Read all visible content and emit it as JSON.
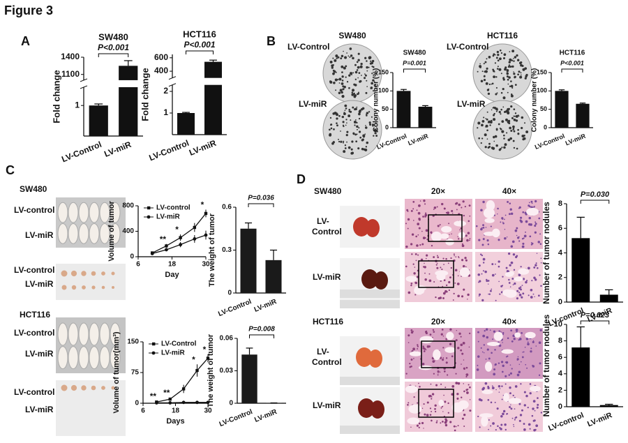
{
  "figure_title": "Figure 3",
  "panel_labels": [
    "A",
    "B",
    "C",
    "D"
  ],
  "photo_labels": {
    "B": [
      "SW480",
      "HCT116",
      "LV-Control",
      "LV-miR",
      "LV-Control",
      "LV-miR"
    ],
    "C": [
      "SW480",
      "LV-control",
      "LV-miR",
      "LV-control",
      "LV-miR",
      "HCT116",
      "LV-control",
      "LV-miR",
      "LV-control",
      "LV-miR"
    ],
    "D": [
      "SW480",
      "LV-",
      "Control",
      "LV-miR",
      "20×",
      "40×",
      "HCT116",
      "LV-",
      "Control",
      "LV-miR",
      "20×",
      "40×"
    ]
  },
  "chart_data": [
    {
      "type": "bar",
      "title": "SW480",
      "ylabel": "Fold change",
      "categories": [
        "LV-Control",
        "LV-miR"
      ],
      "values": [
        1,
        1250
      ],
      "errors": [
        0.05,
        90
      ],
      "ylim": [
        0,
        1400
      ],
      "ybreak": [
        1.6,
        1000
      ],
      "yticks": [
        1,
        1100,
        1400
      ],
      "annotation": "P<0.001",
      "color": "#111111"
    },
    {
      "type": "bar",
      "title": "HCT116",
      "ylabel": "Fold change",
      "categories": [
        "LV-Control",
        "LV-miR"
      ],
      "values": [
        1,
        540
      ],
      "errors": [
        0.03,
        25
      ],
      "ylim": [
        0,
        650
      ],
      "ybreak": [
        2.3,
        300
      ],
      "yticks": [
        1,
        2,
        400,
        600
      ],
      "annotation": "P<0.001",
      "color": "#111111"
    },
    {
      "type": "bar",
      "title": "SW480",
      "ylabel": "Colony number (%)",
      "categories": [
        "LV-Control",
        "LV-miR"
      ],
      "values": [
        100,
        57
      ],
      "errors": [
        4,
        3
      ],
      "ylim": [
        0,
        150
      ],
      "yticks": [
        0,
        50,
        100,
        150
      ],
      "annotation": "P=0.001",
      "color": "#111111"
    },
    {
      "type": "bar",
      "title": "HCT116",
      "ylabel": "Colony number (%)",
      "categories": [
        "LV-Control",
        "LV-miR"
      ],
      "values": [
        100,
        65
      ],
      "errors": [
        3,
        2
      ],
      "ylim": [
        0,
        150
      ],
      "yticks": [
        0,
        50,
        100,
        150
      ],
      "annotation": "P<0.001",
      "color": "#111111"
    },
    {
      "type": "line",
      "xlabel": "Day",
      "ylabel": "Volume of tumor",
      "x": [
        11,
        16,
        21,
        26,
        30
      ],
      "xlim": [
        6,
        30
      ],
      "xticks": [
        6,
        18,
        30
      ],
      "ylim": [
        0,
        800
      ],
      "yticks": [
        0,
        400,
        800
      ],
      "series": [
        {
          "name": "LV-control",
          "color": "#111111",
          "values": [
            60,
            170,
            300,
            460,
            680
          ],
          "errors": [
            15,
            30,
            50,
            70,
            60
          ]
        },
        {
          "name": "LV-miR",
          "color": "#111111",
          "values": [
            50,
            110,
            190,
            280,
            340
          ],
          "errors": [
            10,
            20,
            40,
            60,
            70
          ]
        }
      ],
      "annotations": [
        {
          "x": 16,
          "text": "**"
        },
        {
          "x": 21,
          "text": "*"
        },
        {
          "x": 30,
          "text": "*"
        }
      ]
    },
    {
      "type": "bar",
      "ylabel": "The weight of tumor",
      "categories": [
        "LV-Control",
        "LV-miR"
      ],
      "values": [
        0.45,
        0.23
      ],
      "errors": [
        0.04,
        0.07
      ],
      "ylim": [
        0,
        0.6
      ],
      "yticks": [
        0,
        0.3,
        0.6
      ],
      "annotation": "P=0.036",
      "color": "#1a1a1a"
    },
    {
      "type": "line",
      "xlabel": "Days",
      "ylabel": "Volume of tumor(mm³)",
      "x": [
        11,
        16,
        21,
        26,
        30
      ],
      "xlim": [
        6,
        30
      ],
      "xticks": [
        6,
        18,
        30
      ],
      "ylim": [
        0,
        150
      ],
      "yticks": [
        0,
        75,
        150
      ],
      "series": [
        {
          "name": "LV-Control",
          "color": "#111111",
          "values": [
            3,
            10,
            35,
            80,
            110
          ],
          "errors": [
            2,
            4,
            10,
            15,
            10
          ]
        },
        {
          "name": "LV-miR",
          "color": "#111111",
          "values": [
            1,
            1,
            2,
            2,
            2
          ],
          "errors": [
            0.5,
            0.5,
            1,
            1,
            1
          ]
        }
      ],
      "annotations": [
        {
          "x": 11,
          "text": "**"
        },
        {
          "x": 16,
          "text": "**"
        },
        {
          "x": 26,
          "text": "*"
        },
        {
          "x": 30,
          "text": "*"
        }
      ]
    },
    {
      "type": "bar",
      "ylabel": "The weight of tumor",
      "categories": [
        "LV-Control",
        "LV-miR"
      ],
      "values": [
        0.045,
        0.0003
      ],
      "errors": [
        0.006,
        0
      ],
      "ylim": [
        0,
        0.06
      ],
      "yticks": [
        0,
        0.03,
        0.06
      ],
      "annotation": "P=0.008",
      "color": "#1a1a1a"
    },
    {
      "type": "bar",
      "ylabel": "Number of tumor nodules",
      "categories": [
        "LV-control",
        "LV-miR"
      ],
      "values": [
        5.2,
        0.6
      ],
      "errors": [
        1.7,
        0.4
      ],
      "ylim": [
        0,
        8
      ],
      "yticks": [
        0,
        2,
        4,
        6,
        8
      ],
      "annotation": "P=0.030",
      "color": "#000000"
    },
    {
      "type": "bar",
      "ylabel": "Number of tumor nodules",
      "categories": [
        "LV-control",
        "LV-miR"
      ],
      "values": [
        7.2,
        0.2
      ],
      "errors": [
        2.5,
        0.1
      ],
      "ylim": [
        0,
        10
      ],
      "yticks": [
        0,
        2,
        4,
        6,
        8,
        10
      ],
      "annotation": "P=0.023",
      "color": "#000000"
    }
  ]
}
